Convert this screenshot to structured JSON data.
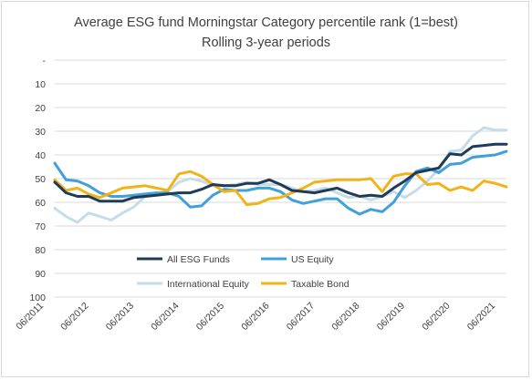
{
  "chart_data": {
    "type": "line",
    "title": "Average ESG fund Morningstar Category percentile rank (1=best)",
    "subtitle": "Rolling 3-year periods",
    "xlabel": "",
    "ylabel": "",
    "y_inverted": true,
    "ylim": [
      0,
      100
    ],
    "y_ticks": [
      "-",
      "10",
      "20",
      "30",
      "40",
      "50",
      "60",
      "70",
      "80",
      "90",
      "100"
    ],
    "x_tick_labels": [
      "06/2011",
      "06/2012",
      "06/2013",
      "06/2014",
      "06/2015",
      "06/2016",
      "06/2017",
      "06/2018",
      "06/2019",
      "06/2020",
      "06/2021"
    ],
    "x_start": "06/2011",
    "x_end": "06/2021",
    "grid": "horizontal",
    "legend_position": "bottom",
    "series": [
      {
        "name": "All ESG Funds",
        "color": "#1f3b57",
        "values": [
          51.5,
          56,
          57.5,
          57.5,
          59.5,
          59.5,
          59.5,
          58,
          57.5,
          57,
          56.5,
          56,
          56,
          54.5,
          52.5,
          53,
          53,
          52,
          52,
          50.5,
          52.5,
          55,
          55.5,
          56,
          55,
          54,
          56,
          57.5,
          57,
          57.5,
          54,
          51,
          47.5,
          46.5,
          45.5,
          39.5,
          40,
          36.5,
          36,
          35.5,
          35.5
        ]
      },
      {
        "name": "US Equity",
        "color": "#41a0d9",
        "values": [
          43.5,
          50.5,
          51,
          53,
          56,
          57.5,
          57.5,
          57,
          56.5,
          56,
          56,
          57.5,
          62,
          61.5,
          57,
          54.5,
          55,
          55,
          54,
          54,
          55.5,
          59,
          60.5,
          59.5,
          58.5,
          58.5,
          62.5,
          65,
          63,
          64,
          60,
          53,
          47,
          45.5,
          47.5,
          44,
          43.5,
          41,
          40.5,
          40,
          38.5
        ]
      },
      {
        "name": "International Equity",
        "color": "#c5dcea",
        "values": [
          62.5,
          66,
          68.5,
          64.5,
          66,
          67.5,
          64.5,
          62,
          57.5,
          56.5,
          55.5,
          51.5,
          50,
          51,
          53,
          53,
          52.5,
          51.5,
          52.5,
          52.5,
          52.5,
          54,
          55.5,
          55,
          54,
          56,
          58,
          57.5,
          59,
          57.5,
          55.5,
          58,
          55,
          51,
          46,
          38.5,
          38,
          32,
          28.5,
          29.5,
          29.5
        ]
      },
      {
        "name": "Taxable Bond",
        "color": "#f2b318",
        "values": [
          50.5,
          55,
          54,
          56.5,
          58,
          56,
          54,
          53.5,
          53,
          54,
          55,
          48,
          47,
          49,
          52.5,
          55.5,
          55,
          61,
          60.5,
          58.5,
          58,
          56,
          54,
          51.5,
          51,
          50.5,
          50.5,
          50.5,
          50,
          55.5,
          49,
          48,
          48,
          52.5,
          52,
          55,
          53.5,
          55,
          51,
          52,
          53.5
        ]
      }
    ]
  }
}
